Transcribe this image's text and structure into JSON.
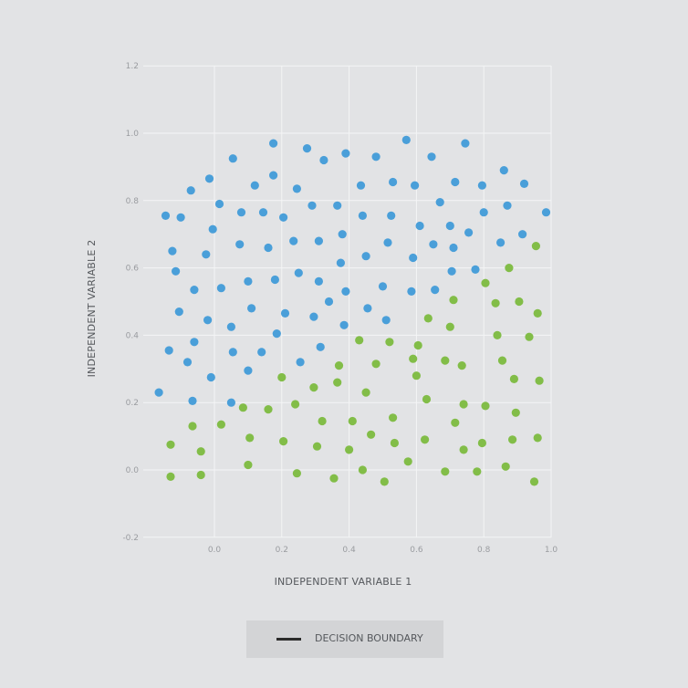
{
  "colors": {
    "class_a": "#4a9fd9",
    "class_b": "#82bd48",
    "grid": "#f4f5f6",
    "background": "#e2e3e5"
  },
  "chart_data": {
    "type": "scatter",
    "title": "",
    "xlabel": "INDEPENDENT VARIABLE 1",
    "ylabel": "INDEPENDENT VARIABLE 2",
    "xlim": [
      -0.18,
      1.0
    ],
    "ylim": [
      -0.2,
      1.2
    ],
    "x_ticks": [
      "0.0",
      "0.2",
      "0.4",
      "0.6",
      "0.8",
      "1.0"
    ],
    "y_ticks": [
      "-0.2",
      "0.0",
      "0.2",
      "0.4",
      "0.6",
      "0.8",
      "1.0",
      "1.2"
    ],
    "grid": true,
    "legend": {
      "position": "bottom-center",
      "entries": [
        "DECISION BOUNDARY"
      ]
    },
    "series": [
      {
        "color": "#4a9fd9",
        "points": [
          [
            -0.165,
            0.23
          ],
          [
            -0.135,
            0.355
          ],
          [
            -0.145,
            0.755
          ],
          [
            -0.125,
            0.65
          ],
          [
            -0.115,
            0.59
          ],
          [
            -0.105,
            0.47
          ],
          [
            -0.1,
            0.75
          ],
          [
            -0.08,
            0.32
          ],
          [
            -0.07,
            0.83
          ],
          [
            -0.065,
            0.205
          ],
          [
            -0.06,
            0.38
          ],
          [
            -0.06,
            0.535
          ],
          [
            -0.025,
            0.64
          ],
          [
            -0.02,
            0.445
          ],
          [
            -0.015,
            0.865
          ],
          [
            -0.01,
            0.275
          ],
          [
            -0.005,
            0.715
          ],
          [
            0.015,
            0.79
          ],
          [
            0.02,
            0.54
          ],
          [
            0.05,
            0.2
          ],
          [
            0.05,
            0.425
          ],
          [
            0.055,
            0.925
          ],
          [
            0.055,
            0.35
          ],
          [
            0.075,
            0.67
          ],
          [
            0.08,
            0.765
          ],
          [
            0.1,
            0.56
          ],
          [
            0.1,
            0.295
          ],
          [
            0.11,
            0.48
          ],
          [
            0.12,
            0.845
          ],
          [
            0.14,
            0.35
          ],
          [
            0.145,
            0.765
          ],
          [
            0.16,
            0.66
          ],
          [
            0.175,
            0.97
          ],
          [
            0.175,
            0.875
          ],
          [
            0.18,
            0.565
          ],
          [
            0.185,
            0.405
          ],
          [
            0.205,
            0.75
          ],
          [
            0.21,
            0.465
          ],
          [
            0.235,
            0.68
          ],
          [
            0.245,
            0.835
          ],
          [
            0.25,
            0.585
          ],
          [
            0.255,
            0.32
          ],
          [
            0.275,
            0.955
          ],
          [
            0.29,
            0.785
          ],
          [
            0.295,
            0.455
          ],
          [
            0.31,
            0.68
          ],
          [
            0.31,
            0.56
          ],
          [
            0.315,
            0.365
          ],
          [
            0.325,
            0.92
          ],
          [
            0.34,
            0.5
          ],
          [
            0.365,
            0.785
          ],
          [
            0.375,
            0.615
          ],
          [
            0.38,
            0.7
          ],
          [
            0.385,
            0.43
          ],
          [
            0.39,
            0.53
          ],
          [
            0.39,
            0.94
          ],
          [
            0.435,
            0.845
          ],
          [
            0.44,
            0.755
          ],
          [
            0.45,
            0.635
          ],
          [
            0.455,
            0.48
          ],
          [
            0.48,
            0.93
          ],
          [
            0.5,
            0.545
          ],
          [
            0.51,
            0.445
          ],
          [
            0.515,
            0.675
          ],
          [
            0.525,
            0.755
          ],
          [
            0.53,
            0.855
          ],
          [
            0.57,
            0.98
          ],
          [
            0.585,
            0.53
          ],
          [
            0.59,
            0.63
          ],
          [
            0.595,
            0.845
          ],
          [
            0.61,
            0.725
          ],
          [
            0.645,
            0.93
          ],
          [
            0.65,
            0.67
          ],
          [
            0.655,
            0.535
          ],
          [
            0.67,
            0.795
          ],
          [
            0.7,
            0.725
          ],
          [
            0.705,
            0.59
          ],
          [
            0.71,
            0.66
          ],
          [
            0.715,
            0.855
          ],
          [
            0.745,
            0.97
          ],
          [
            0.755,
            0.705
          ],
          [
            0.775,
            0.595
          ],
          [
            0.795,
            0.845
          ],
          [
            0.8,
            0.765
          ],
          [
            0.85,
            0.675
          ],
          [
            0.86,
            0.89
          ],
          [
            0.87,
            0.785
          ],
          [
            0.915,
            0.7
          ],
          [
            0.92,
            0.85
          ],
          [
            0.985,
            0.765
          ]
        ]
      },
      {
        "color": "#82bd48",
        "points": [
          [
            -0.13,
            0.075
          ],
          [
            -0.13,
            -0.02
          ],
          [
            -0.065,
            0.13
          ],
          [
            -0.04,
            0.055
          ],
          [
            -0.04,
            -0.015
          ],
          [
            0.02,
            0.135
          ],
          [
            0.085,
            0.185
          ],
          [
            0.1,
            0.015
          ],
          [
            0.105,
            0.095
          ],
          [
            0.16,
            0.18
          ],
          [
            0.2,
            0.275
          ],
          [
            0.205,
            0.085
          ],
          [
            0.24,
            0.195
          ],
          [
            0.245,
            -0.01
          ],
          [
            0.295,
            0.245
          ],
          [
            0.305,
            0.07
          ],
          [
            0.32,
            0.145
          ],
          [
            0.355,
            -0.025
          ],
          [
            0.365,
            0.26
          ],
          [
            0.37,
            0.31
          ],
          [
            0.4,
            0.06
          ],
          [
            0.41,
            0.145
          ],
          [
            0.43,
            0.385
          ],
          [
            0.44,
            0.0
          ],
          [
            0.45,
            0.23
          ],
          [
            0.465,
            0.105
          ],
          [
            0.48,
            0.315
          ],
          [
            0.505,
            -0.035
          ],
          [
            0.52,
            0.38
          ],
          [
            0.53,
            0.155
          ],
          [
            0.535,
            0.08
          ],
          [
            0.575,
            0.025
          ],
          [
            0.59,
            0.33
          ],
          [
            0.6,
            0.28
          ],
          [
            0.605,
            0.37
          ],
          [
            0.625,
            0.09
          ],
          [
            0.63,
            0.21
          ],
          [
            0.635,
            0.45
          ],
          [
            0.685,
            0.325
          ],
          [
            0.685,
            -0.005
          ],
          [
            0.7,
            0.425
          ],
          [
            0.71,
            0.505
          ],
          [
            0.715,
            0.14
          ],
          [
            0.735,
            0.31
          ],
          [
            0.74,
            0.195
          ],
          [
            0.74,
            0.06
          ],
          [
            0.78,
            -0.005
          ],
          [
            0.795,
            0.08
          ],
          [
            0.805,
            0.555
          ],
          [
            0.805,
            0.19
          ],
          [
            0.835,
            0.495
          ],
          [
            0.84,
            0.4
          ],
          [
            0.855,
            0.325
          ],
          [
            0.865,
            0.01
          ],
          [
            0.875,
            0.6
          ],
          [
            0.885,
            0.09
          ],
          [
            0.89,
            0.27
          ],
          [
            0.895,
            0.17
          ],
          [
            0.905,
            0.5
          ],
          [
            0.935,
            0.395
          ],
          [
            0.95,
            -0.035
          ],
          [
            0.955,
            0.665
          ],
          [
            0.96,
            0.465
          ],
          [
            0.96,
            0.095
          ],
          [
            0.965,
            0.265
          ]
        ]
      }
    ]
  }
}
